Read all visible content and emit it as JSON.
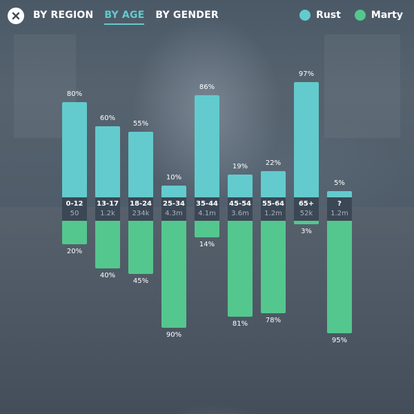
{
  "header": {
    "close_icon": "close-x-circle-icon",
    "tabs": [
      {
        "label": "BY REGION",
        "active": false
      },
      {
        "label": "BY AGE",
        "active": true
      },
      {
        "label": "BY GENDER",
        "active": false
      }
    ],
    "legend": [
      {
        "label": "Rust",
        "color": "#63cbcd"
      },
      {
        "label": "Marty",
        "color": "#54c78e"
      }
    ]
  },
  "colors": {
    "rust": "#63cbcd",
    "marty": "#54c78e",
    "accent": "#63cbcd"
  },
  "chart_data": {
    "type": "bar",
    "categories": [
      "0-12",
      "13-17",
      "18-24",
      "25-34",
      "35-44",
      "45-54",
      "55-64",
      "65+",
      "?"
    ],
    "counts": [
      "50",
      "1.2k",
      "234k",
      "4.3m",
      "4.1m",
      "3.6m",
      "1.2m",
      "52k",
      "1.2m"
    ],
    "series": [
      {
        "name": "Rust",
        "values": [
          80,
          60,
          55,
          10,
          86,
          19,
          22,
          97,
          5
        ],
        "labels": [
          "80%",
          "60%",
          "55%",
          "10%",
          "86%",
          "19%",
          "22%",
          "97%",
          "5%"
        ]
      },
      {
        "name": "Marty",
        "values": [
          20,
          40,
          45,
          90,
          14,
          81,
          78,
          3,
          95
        ],
        "labels": [
          "20%",
          "40%",
          "45%",
          "90%",
          "14%",
          "81%",
          "78%",
          "3%",
          "95%"
        ]
      }
    ],
    "ylim": [
      0,
      100
    ],
    "xlabel": "",
    "ylabel": ""
  }
}
